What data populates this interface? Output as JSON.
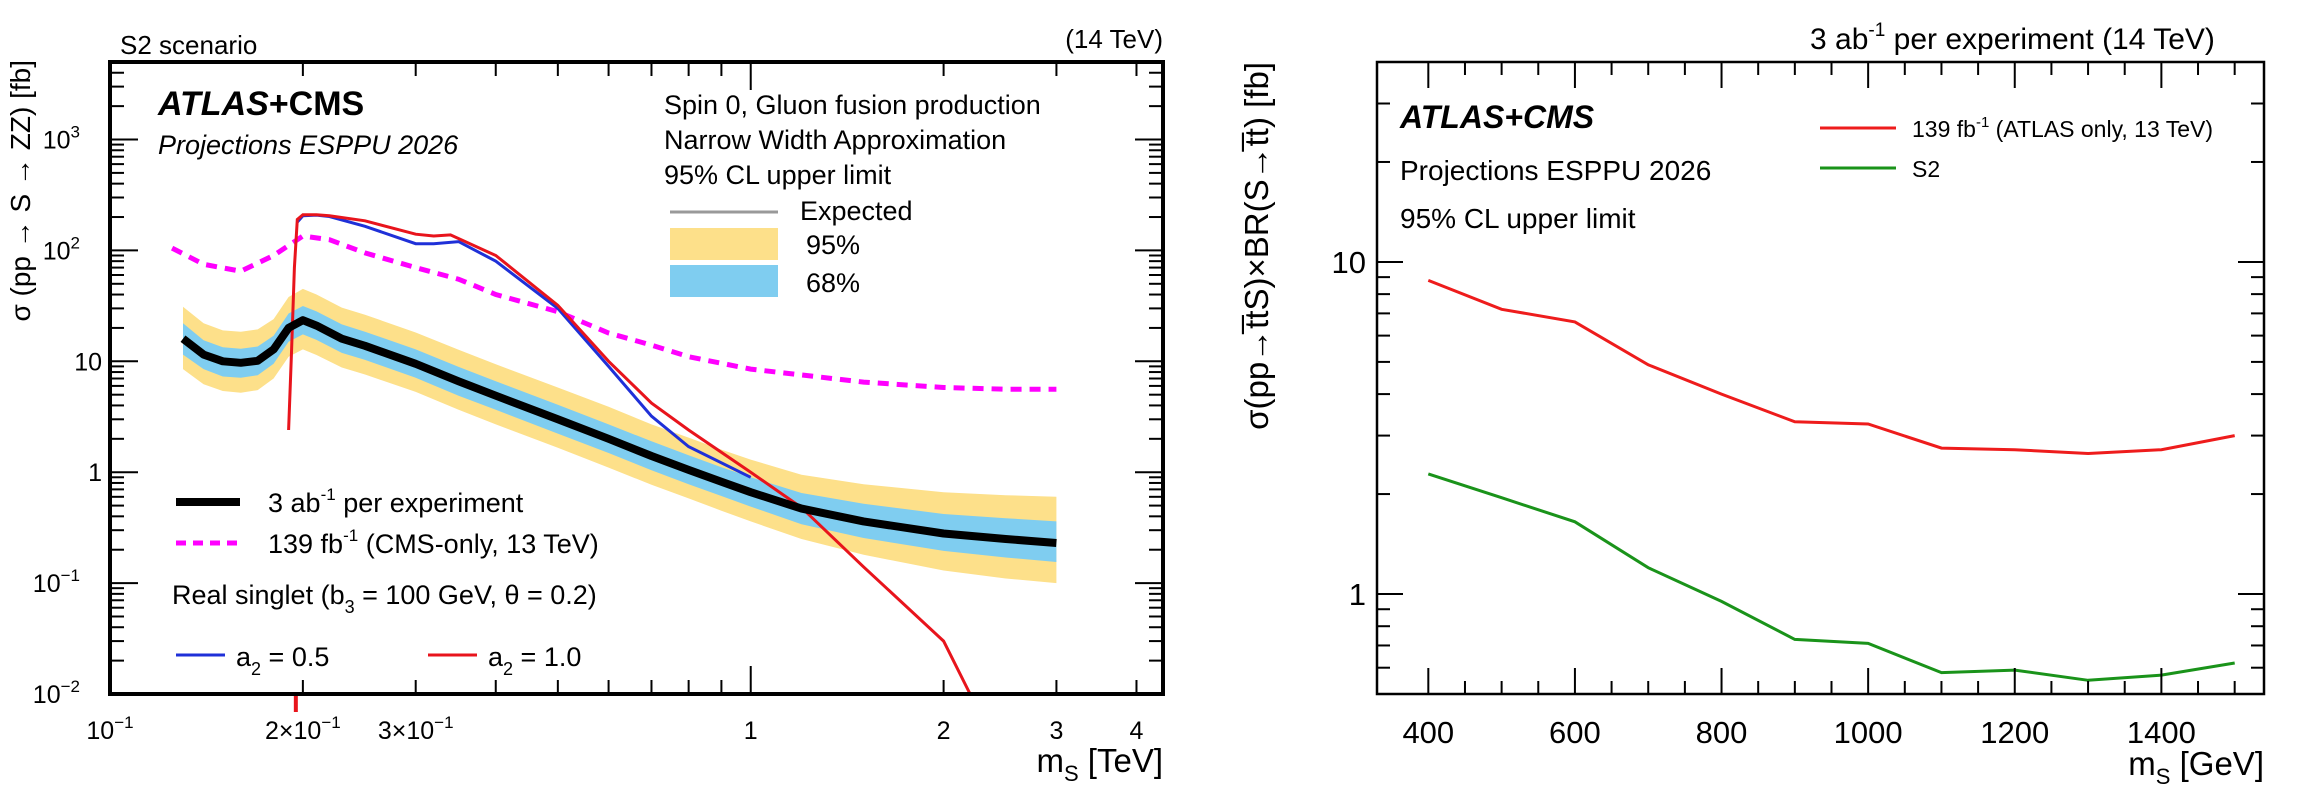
{
  "chart_data": [
    {
      "type": "line",
      "scale": "log-log",
      "corner_left": "S2 scenario",
      "corner_right": "(14 TeV)",
      "experiment": "ATLAS",
      "experiment_plus": "+CMS",
      "projection": "Projections ESPPU 2026",
      "info": [
        "Spin 0, Gluon fusion production",
        "Narrow Width Approximation",
        "95% CL upper limit"
      ],
      "legend_band": [
        "Expected",
        "95%",
        "68%"
      ],
      "legend_lines": {
        "main_prefix": "3 ab",
        "main_sup": "-1",
        "main_suffix": " per experiment",
        "cms_prefix": "139 fb",
        "cms_sup": "-1",
        "cms_suffix": " (CMS-only, 13 TeV)",
        "singlet_a": "Real singlet (b",
        "singlet_sub": "3",
        "singlet_b": " = 100 GeV, θ = 0.2)",
        "a_sym": "a",
        "a_sub": "2",
        "a05": " = 0.5",
        "a10": " = 1.0"
      },
      "xlabel_m": "m",
      "xlabel_sub": "S",
      "xlabel_unit": " [TeV]",
      "ylabel": "σ (pp → S → ZZ) [fb]",
      "xlim": [
        0.1,
        4.4
      ],
      "ylim": [
        0.01,
        5000
      ],
      "x_tick_labels": [
        {
          "v": 0.1,
          "base": "10",
          "exp": "−1"
        },
        {
          "v": 0.2,
          "base": "2×10",
          "exp": "−1"
        },
        {
          "v": 0.3,
          "base": "3×10",
          "exp": "−1"
        },
        {
          "v": 1,
          "text": "1"
        },
        {
          "v": 2,
          "text": "2"
        },
        {
          "v": 3,
          "text": "3"
        },
        {
          "v": 4,
          "text": "4"
        }
      ],
      "y_tick_labels": [
        {
          "v": 0.01,
          "base": "10",
          "exp": "−2"
        },
        {
          "v": 0.1,
          "base": "10",
          "exp": "−1"
        },
        {
          "v": 1,
          "text": "1"
        },
        {
          "v": 10,
          "text": "10"
        },
        {
          "v": 100,
          "base": "10",
          "exp": "2"
        },
        {
          "v": 1000,
          "base": "10",
          "exp": "3"
        }
      ],
      "colors": {
        "expected": "#000000",
        "band95": "#fde08a",
        "band68": "#7fcdf0",
        "cms": "#ff00ff",
        "a05": "#1f30d8",
        "a10": "#e8141c",
        "expected_legend": "#999999"
      },
      "series": [
        {
          "name": "3 ab-1 per experiment (expected)",
          "x": [
            0.13,
            0.14,
            0.15,
            0.16,
            0.17,
            0.18,
            0.19,
            0.2,
            0.21,
            0.23,
            0.25,
            0.3,
            0.35,
            0.4,
            0.5,
            0.6,
            0.7,
            0.8,
            0.9,
            1.0,
            1.2,
            1.5,
            2.0,
            2.5,
            3.0
          ],
          "y": [
            16,
            11.5,
            10,
            9.7,
            10.1,
            12.8,
            20,
            23.5,
            21,
            16,
            13.8,
            9.5,
            6.6,
            4.9,
            3.0,
            2.0,
            1.4,
            1.05,
            0.82,
            0.66,
            0.47,
            0.36,
            0.28,
            0.25,
            0.23
          ],
          "band68": [
            [
              11.5,
              22
            ],
            [
              8.5,
              15.5
            ],
            [
              7.3,
              13.4
            ],
            [
              7.1,
              13
            ],
            [
              7.5,
              13.6
            ],
            [
              9.5,
              17
            ],
            [
              15,
              27
            ],
            [
              17.5,
              31.5
            ],
            [
              15.6,
              28.2
            ],
            [
              11.9,
              21.5
            ],
            [
              10.3,
              18.5
            ],
            [
              7.1,
              12.8
            ],
            [
              4.9,
              8.9
            ],
            [
              3.65,
              6.6
            ],
            [
              2.23,
              4.05
            ],
            [
              1.49,
              2.7
            ],
            [
              1.04,
              1.9
            ],
            [
              0.78,
              1.42
            ],
            [
              0.61,
              1.11
            ],
            [
              0.49,
              0.9
            ],
            [
              0.34,
              0.65
            ],
            [
              0.255,
              0.52
            ],
            [
              0.195,
              0.42
            ],
            [
              0.17,
              0.385
            ],
            [
              0.155,
              0.36
            ]
          ],
          "band95": [
            [
              8.5,
              31
            ],
            [
              6.2,
              22
            ],
            [
              5.4,
              19
            ],
            [
              5.2,
              18.5
            ],
            [
              5.5,
              19.4
            ],
            [
              7,
              24
            ],
            [
              11,
              38
            ],
            [
              12.8,
              45
            ],
            [
              11.4,
              40
            ],
            [
              8.8,
              30.5
            ],
            [
              7.6,
              26.3
            ],
            [
              5.3,
              18.2
            ],
            [
              3.65,
              12.7
            ],
            [
              2.7,
              9.4
            ],
            [
              1.66,
              5.8
            ],
            [
              1.1,
              3.9
            ],
            [
              0.77,
              2.7
            ],
            [
              0.58,
              2.05
            ],
            [
              0.45,
              1.6
            ],
            [
              0.36,
              1.3
            ],
            [
              0.25,
              0.95
            ],
            [
              0.18,
              0.78
            ],
            [
              0.13,
              0.66
            ],
            [
              0.11,
              0.62
            ],
            [
              0.1,
              0.6
            ]
          ]
        },
        {
          "name": "139 fb-1 (CMS-only, 13 TeV)",
          "x": [
            0.125,
            0.14,
            0.16,
            0.18,
            0.2,
            0.22,
            0.25,
            0.3,
            0.35,
            0.4,
            0.5,
            0.6,
            0.7,
            0.8,
            1.0,
            1.5,
            2.0,
            2.5,
            3.0
          ],
          "y": [
            105,
            75,
            65,
            90,
            135,
            125,
            95,
            70,
            55,
            40,
            28,
            18,
            14,
            11,
            8.5,
            6.5,
            5.8,
            5.6,
            5.6
          ]
        },
        {
          "name": "a2 = 0.5",
          "x": [
            0.196,
            0.2,
            0.21,
            0.22,
            0.25,
            0.3,
            0.32,
            0.35,
            0.4,
            0.5,
            0.6,
            0.7,
            0.8,
            1.0
          ],
          "y": [
            180,
            205,
            208,
            202,
            165,
            115,
            115,
            120,
            80,
            30,
            9,
            3.2,
            1.7,
            0.9
          ]
        },
        {
          "name": "a2 = 1.0",
          "x": [
            0.19,
            0.192,
            0.194,
            0.196,
            0.2,
            0.21,
            0.22,
            0.25,
            0.3,
            0.32,
            0.34,
            0.4,
            0.5,
            0.6,
            0.7,
            0.8,
            1.0,
            1.2,
            1.5,
            2.0,
            2.2
          ],
          "y": [
            2.4,
            12,
            70,
            190,
            210,
            210,
            205,
            185,
            140,
            135,
            138,
            90,
            32,
            10,
            4.2,
            2.4,
            1.0,
            0.48,
            0.14,
            0.03,
            0.0095
          ]
        }
      ]
    },
    {
      "type": "line",
      "scale": "linear-x, log-y",
      "title_prefix": "3 ab",
      "title_sup": "-1",
      "title_suffix": " per experiment (14 TeV)",
      "experiment_full": "ATLAS+CMS",
      "projection": "Projections ESPPU 2026",
      "limit": "95% CL upper limit",
      "legend_atlas_prefix": "139 fb",
      "legend_atlas_sup": "-1",
      "legend_atlas_suffix": " (ATLAS only, 13 TeV)",
      "legend_s2": "S2",
      "xlabel_m": "m",
      "xlabel_sub": "S",
      "xlabel_unit": " [GeV]",
      "ylabel": "σ(pp→t̅tS)×BR(S→t̅t) [fb]",
      "xlim": [
        330,
        1540
      ],
      "ylim": [
        0.5,
        40
      ],
      "x_tick_labels": [
        "400",
        "600",
        "800",
        "1000",
        "1200",
        "1400"
      ],
      "x_tick_values": [
        400,
        600,
        800,
        1000,
        1200,
        1400
      ],
      "y_tick_labels": [
        "1",
        "10"
      ],
      "y_tick_values": [
        1,
        10
      ],
      "colors": {
        "atlas": "#ee1c1c",
        "s2": "#1a931a"
      },
      "series": [
        {
          "name": "139 fb-1 (ATLAS only, 13 TeV)",
          "x": [
            400,
            500,
            600,
            700,
            800,
            900,
            1000,
            1100,
            1200,
            1300,
            1400,
            1500
          ],
          "y": [
            8.8,
            7.2,
            6.6,
            4.9,
            4.0,
            3.3,
            3.25,
            2.75,
            2.72,
            2.65,
            2.72,
            3.0
          ]
        },
        {
          "name": "S2",
          "x": [
            400,
            500,
            600,
            700,
            800,
            900,
            1000,
            1100,
            1200,
            1300,
            1400,
            1500
          ],
          "y": [
            2.3,
            1.95,
            1.65,
            1.2,
            0.95,
            0.73,
            0.71,
            0.58,
            0.59,
            0.55,
            0.57,
            0.62
          ]
        }
      ]
    }
  ]
}
